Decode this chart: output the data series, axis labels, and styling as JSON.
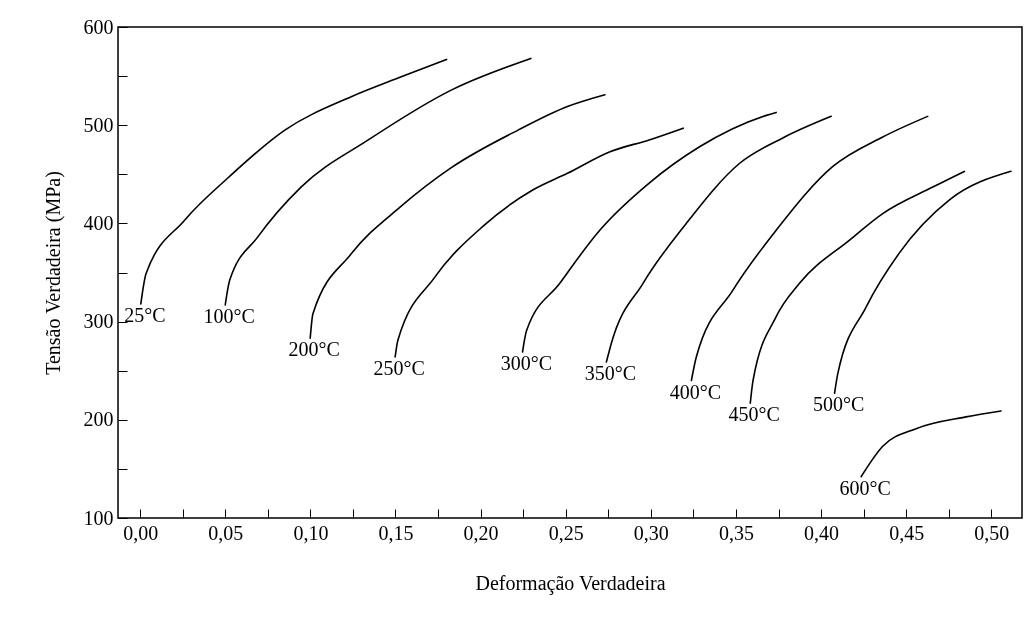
{
  "chart_data": {
    "type": "line",
    "xlabel": "Deformação Verdadeira",
    "ylabel": "Tensão Verdadeira (MPa)",
    "xlim": [
      -0.013,
      0.518
    ],
    "ylim": [
      100,
      600
    ],
    "xticks": [
      {
        "value": 0,
        "label": "0,00"
      },
      {
        "value": 0.025,
        "label": null
      },
      {
        "value": 0.05,
        "label": "0,05"
      },
      {
        "value": 0.075,
        "label": null
      },
      {
        "value": 0.1,
        "label": "0,10"
      },
      {
        "value": 0.125,
        "label": null
      },
      {
        "value": 0.15,
        "label": "0,15"
      },
      {
        "value": 0.175,
        "label": null
      },
      {
        "value": 0.2,
        "label": "0,20"
      },
      {
        "value": 0.225,
        "label": null
      },
      {
        "value": 0.25,
        "label": "0,25"
      },
      {
        "value": 0.275,
        "label": null
      },
      {
        "value": 0.3,
        "label": "0,30"
      },
      {
        "value": 0.325,
        "label": null
      },
      {
        "value": 0.35,
        "label": "0,35"
      },
      {
        "value": 0.375,
        "label": null
      },
      {
        "value": 0.4,
        "label": "0,40"
      },
      {
        "value": 0.425,
        "label": null
      },
      {
        "value": 0.45,
        "label": "0,45"
      },
      {
        "value": 0.475,
        "label": null
      },
      {
        "value": 0.5,
        "label": "0,50"
      }
    ],
    "yticks": [
      100,
      {
        "value": 150,
        "label": null
      },
      200,
      {
        "value": 250,
        "label": null
      },
      300,
      {
        "value": 350,
        "label": null
      },
      400,
      {
        "value": 450,
        "label": null
      },
      500,
      {
        "value": 550,
        "label": null
      },
      600
    ],
    "grid": false,
    "legend": false,
    "marker": "none",
    "line_style": "solid",
    "series": [
      {
        "name": "25°C",
        "color": "#000000",
        "x": [
          0.0004,
          0.0035,
          0.026,
          0.052,
          0.085,
          0.124,
          0.153,
          0.18
        ],
        "values": [
          318,
          349,
          403,
          447,
          495,
          529,
          549,
          567
        ]
      },
      {
        "name": "100°C",
        "color": "#000000",
        "x": [
          0.05,
          0.0526,
          0.069,
          0.0945,
          0.134,
          0.183,
          0.2295
        ],
        "values": [
          317,
          342,
          386,
          437,
          485,
          536,
          568
        ]
      },
      {
        "name": "200°C",
        "color": "#000000",
        "x": [
          0.0999,
          0.1015,
          0.124,
          0.153,
          0.183,
          0.222,
          0.251,
          0.273
        ],
        "values": [
          283,
          308,
          369,
          417,
          457,
          495,
          519,
          531
        ]
      },
      {
        "name": "250°C",
        "color": "#000000",
        "x": [
          0.1498,
          0.1514,
          0.173,
          0.202,
          0.2306,
          0.251,
          0.276,
          0.299,
          0.319
        ],
        "values": [
          264,
          281,
          345,
          398,
          434,
          451,
          473,
          485,
          497
        ]
      },
      {
        "name": "300°C",
        "color": "#000000",
        "x": [
          0.2246,
          0.227,
          0.2465,
          0.27,
          0.299,
          0.3286,
          0.3678,
          0.3736
        ],
        "values": [
          269,
          291,
          339,
          393,
          441,
          478,
          510,
          513
        ]
      },
      {
        "name": "350°C",
        "color": "#000000",
        "x": [
          0.2739,
          0.2768,
          0.2954,
          0.3208,
          0.352,
          0.3775,
          0.4059
        ],
        "values": [
          259,
          278,
          339,
          400,
          461,
          487,
          509
        ]
      },
      {
        "name": "400°C",
        "color": "#000000",
        "x": [
          0.3238,
          0.3267,
          0.3482,
          0.3736,
          0.4069,
          0.4362,
          0.4626
        ],
        "values": [
          240,
          264,
          332,
          393,
          458,
          488,
          509
        ]
      },
      {
        "name": "450°C",
        "color": "#000000",
        "x": [
          0.3584,
          0.36,
          0.3736,
          0.3873,
          0.4167,
          0.4362,
          0.4656,
          0.4842
        ],
        "values": [
          217,
          240,
          305,
          339,
          383,
          410,
          437,
          453
        ]
      },
      {
        "name": "500°C",
        "color": "#000000",
        "x": [
          0.4079,
          0.4098,
          0.4265,
          0.446,
          0.4754,
          0.5115
        ],
        "values": [
          227,
          247,
          315,
          370,
          424,
          453
        ]
      },
      {
        "name": "600°C",
        "color": "#000000",
        "x": [
          0.4235,
          0.4362,
          0.4558,
          0.4851,
          0.5057
        ],
        "values": [
          142,
          173,
          191,
          203,
          209
        ]
      }
    ]
  }
}
